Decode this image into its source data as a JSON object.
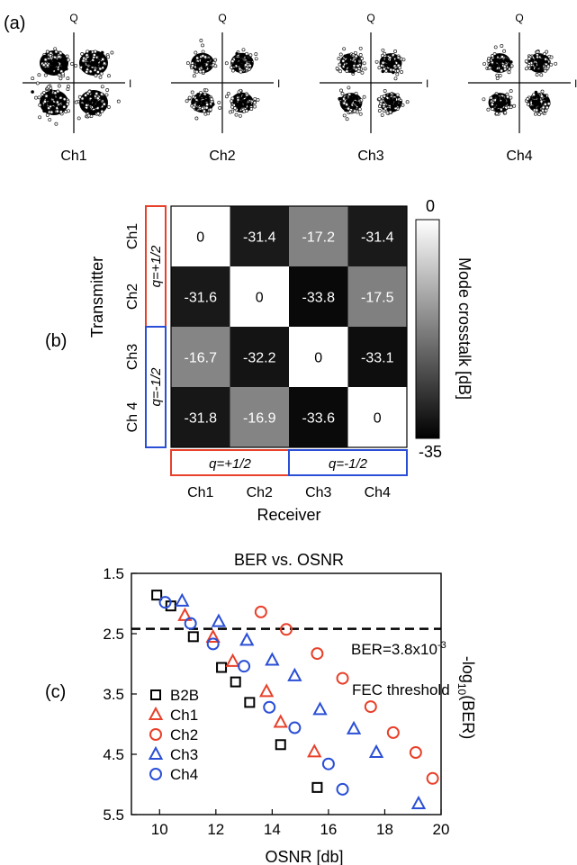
{
  "panel_labels": [
    "(a)",
    "(b)",
    "(c)"
  ],
  "constellations": {
    "axis_q": "Q",
    "axis_i": "I",
    "channels": [
      "Ch1",
      "Ch2",
      "Ch3",
      "Ch4"
    ],
    "spread": [
      1.0,
      0.8,
      0.78,
      0.78
    ]
  },
  "chart_data": [
    {
      "type": "heatmap",
      "title": "",
      "xlabel": "Receiver",
      "ylabel": "Transmitter",
      "x_categories": [
        "Ch1",
        "Ch2",
        "Ch3",
        "Ch4"
      ],
      "y_categories": [
        "Ch1",
        "Ch2",
        "Ch3",
        "Ch 4"
      ],
      "values": [
        [
          0,
          -31.4,
          -17.2,
          -31.4
        ],
        [
          -31.6,
          0,
          -33.8,
          -17.5
        ],
        [
          -16.7,
          -32.2,
          0,
          -33.1
        ],
        [
          -31.8,
          -16.9,
          -33.6,
          0
        ]
      ],
      "value_labels": [
        [
          "0",
          "-31.4",
          "-17.2",
          "-31.4"
        ],
        [
          "-31.6",
          "0",
          "-33.8",
          "-17.5"
        ],
        [
          "-16.7",
          "-32.2",
          "0",
          "-33.1"
        ],
        [
          "-31.8",
          "-16.9",
          "-33.6",
          "0"
        ]
      ],
      "colorbar": {
        "label": "Mode crosstalk [dB]",
        "min": -35,
        "max": 0,
        "min_label": "-35",
        "max_label": "0"
      },
      "groups": [
        {
          "label": "q=+1/2",
          "color": "#e8402a"
        },
        {
          "label": "q=-1/2",
          "color": "#2a4fd6"
        }
      ]
    },
    {
      "type": "scatter",
      "title": "BER vs. OSNR",
      "xlabel": "OSNR [db]",
      "ylabel": "-log10(BER)",
      "ylabel_main": "-log",
      "ylabel_sub": "10",
      "ylabel_tail": "(BER)",
      "xlim": [
        9,
        20
      ],
      "ylim": [
        1.5,
        5.5
      ],
      "y_inverted": true,
      "x_ticks": [
        10,
        12,
        14,
        16,
        18,
        20
      ],
      "y_ticks": [
        1.5,
        2.5,
        3.5,
        4.5,
        5.5
      ],
      "threshold": {
        "y": 2.42,
        "label_main": "BER=3.8x10",
        "label_exp": "-3",
        "label_sub": "FEC threshold"
      },
      "legend_position": "bottom-left",
      "series": [
        {
          "name": "B2B",
          "marker": "square",
          "color": "#000000",
          "points": [
            [
              9.9,
              1.86
            ],
            [
              10.4,
              2.04
            ],
            [
              11.2,
              2.55
            ],
            [
              12.2,
              3.06
            ],
            [
              12.7,
              3.3
            ],
            [
              13.2,
              3.64
            ],
            [
              14.3,
              4.34
            ],
            [
              15.6,
              5.05
            ]
          ]
        },
        {
          "name": "Ch1",
          "marker": "triangle",
          "color": "#e8402a",
          "points": [
            [
              10.9,
              2.2
            ],
            [
              11.9,
              2.56
            ],
            [
              12.6,
              2.96
            ],
            [
              13.8,
              3.46
            ],
            [
              14.3,
              3.97
            ],
            [
              15.5,
              4.46
            ]
          ]
        },
        {
          "name": "Ch2",
          "marker": "circle",
          "color": "#e8402a",
          "points": [
            [
              13.6,
              2.14
            ],
            [
              14.5,
              2.43
            ],
            [
              15.6,
              2.83
            ],
            [
              16.5,
              3.24
            ],
            [
              17.5,
              3.71
            ],
            [
              18.3,
              4.14
            ],
            [
              19.1,
              4.47
            ],
            [
              19.7,
              4.9
            ]
          ]
        },
        {
          "name": "Ch3",
          "marker": "triangle",
          "color": "#2a4fd6",
          "points": [
            [
              10.8,
              1.96
            ],
            [
              12.1,
              2.3
            ],
            [
              13.1,
              2.61
            ],
            [
              14.0,
              2.94
            ],
            [
              14.8,
              3.2
            ],
            [
              15.7,
              3.76
            ],
            [
              16.9,
              4.08
            ],
            [
              17.7,
              4.47
            ],
            [
              19.2,
              5.32
            ]
          ]
        },
        {
          "name": "Ch4",
          "marker": "circle",
          "color": "#2a4fd6",
          "points": [
            [
              10.2,
              1.98
            ],
            [
              11.1,
              2.33
            ],
            [
              11.9,
              2.67
            ],
            [
              13.0,
              3.04
            ],
            [
              13.9,
              3.72
            ],
            [
              14.8,
              4.06
            ],
            [
              16.0,
              4.66
            ],
            [
              16.5,
              5.08
            ]
          ]
        }
      ]
    }
  ]
}
